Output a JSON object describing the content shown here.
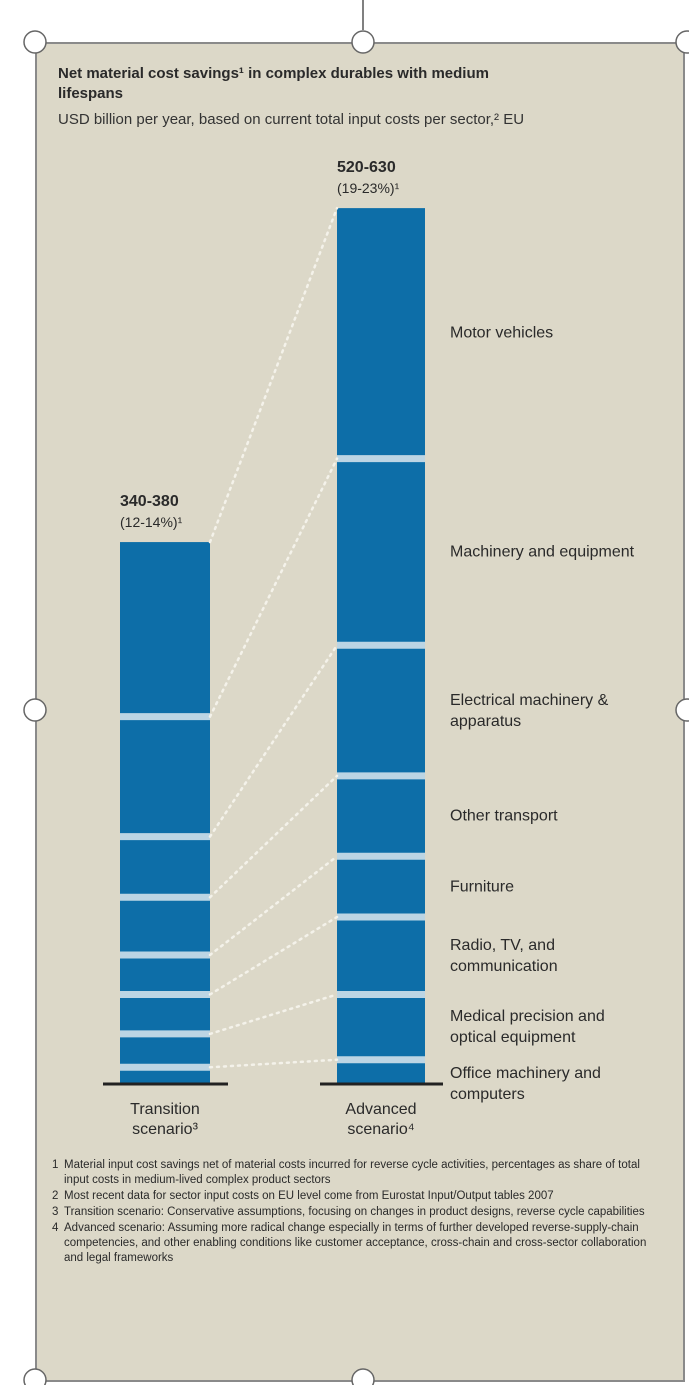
{
  "chart_data": {
    "type": "stacked_bar",
    "title": "Net material cost savings¹ in complex durables with medium lifespans",
    "subtitle": "USD billion per year, based on current total input costs per sector,² EU",
    "categories": [
      "Transition scenario³",
      "Advanced scenario⁴"
    ],
    "totals": [
      "340-380",
      "520-630"
    ],
    "total_shares": [
      "(12-14%)¹",
      "(19-23%)¹"
    ],
    "color": "#0d6ea8",
    "series": [
      {
        "name": "Motor vehicles",
        "values": [
          115,
          165
        ]
      },
      {
        "name": "Machinery and equipment",
        "values": [
          79,
          123
        ]
      },
      {
        "name": "Electrical machinery & apparatus",
        "values": [
          40,
          86
        ]
      },
      {
        "name": "Other transport",
        "values": [
          38,
          53
        ]
      },
      {
        "name": "Furniture",
        "values": [
          26,
          40
        ]
      },
      {
        "name": "Radio, TV, and communication",
        "values": [
          26,
          51
        ]
      },
      {
        "name": "Medical precision and optical equipment",
        "values": [
          22,
          43
        ]
      },
      {
        "name": "Office machinery and computers",
        "values": [
          11,
          16
        ]
      }
    ],
    "footnotes": [
      {
        "number": "1",
        "text": "Material input cost savings net of material costs incurred for reverse cycle activities, percentages as share of total input costs in medium-lived complex product sectors"
      },
      {
        "number": "2",
        "text": "Most recent data for sector input costs on EU level come from Eurostat Input/Output tables 2007"
      },
      {
        "number": "3",
        "text": "Transition scenario: Conservative assumptions, focusing on changes in product designs, reverse cycle capabilities"
      },
      {
        "number": "4",
        "text": "Advanced scenario: Assuming more radical change especially in terms of further developed reverse-supply-chain competencies, and other enabling conditions like customer acceptance, cross-chain and cross-sector collaboration and legal frameworks"
      }
    ]
  }
}
